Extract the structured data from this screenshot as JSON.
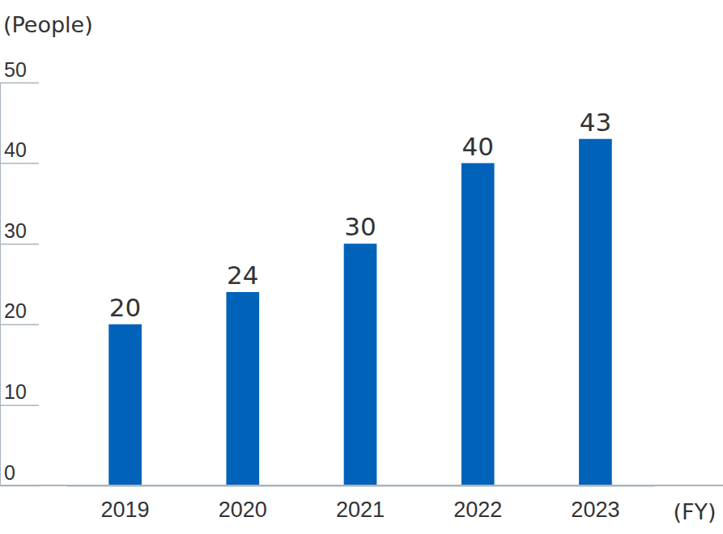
{
  "chart_data": {
    "type": "bar",
    "y_label": "(People)",
    "x_label": "(FY)",
    "categories": [
      "2019",
      "2020",
      "2021",
      "2022",
      "2023"
    ],
    "values": [
      20,
      24,
      30,
      40,
      43
    ],
    "color": "#0062b8",
    "ylim": [
      0,
      50
    ],
    "yticks": [
      0,
      10,
      20,
      30,
      40,
      50
    ],
    "grid": false,
    "data_labels": true
  }
}
